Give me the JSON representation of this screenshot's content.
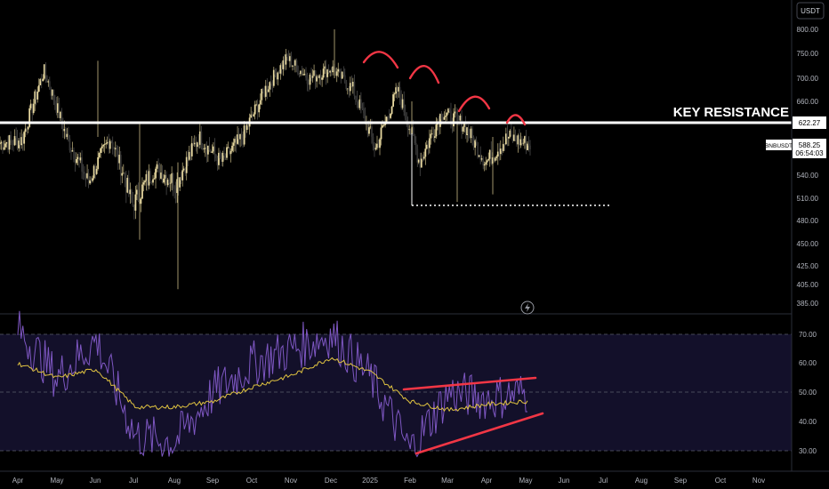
{
  "symbol": "BNBUSDT",
  "currency": "USDT",
  "colors": {
    "background": "#000000",
    "up_candle": "#e8d9a0",
    "down_candle": "#1a1a1a",
    "axis_text": "#b2b5be",
    "resistance": "#ffffff",
    "annotation": "#f23645",
    "rsi_line": "#7e57c2",
    "rsi_ma": "#e0c341",
    "rsi_band": "#14102a"
  },
  "price_pane": {
    "price_ticks": [
      "800.00",
      "750.00",
      "700.00",
      "660.00",
      "622.27",
      "540.00",
      "510.00",
      "480.00",
      "450.00",
      "425.00",
      "405.00",
      "385.00"
    ],
    "key_resistance_label": "KEY RESISTANCE",
    "key_resistance_value": "622.27",
    "current_price_label": "588.25",
    "countdown": "06:54:03"
  },
  "rsi_pane": {
    "ticks": [
      "70.00",
      "60.00",
      "50.00",
      "40.00",
      "30.00"
    ]
  },
  "time_axis": [
    "Apr",
    "May",
    "Jun",
    "Jul",
    "Aug",
    "Sep",
    "Oct",
    "Nov",
    "Dec",
    "2025",
    "Feb",
    "Mar",
    "Apr",
    "May",
    "Jun",
    "Jul",
    "Aug",
    "Sep",
    "Oct",
    "Nov"
  ],
  "chart_data": [
    {
      "type": "candlestick",
      "currency": "USDT",
      "symbol": "BNBUSDT",
      "ylim": [
        370,
        820
      ],
      "support_levels": [
        {
          "value": 500,
          "style": "dotted"
        }
      ],
      "resistance_levels": [
        {
          "label": "KEY RESISTANCE",
          "value": 622.27
        }
      ],
      "close_path": [
        {
          "x": "Apr 2024",
          "y": 590
        },
        {
          "x": "May 2024",
          "y": 595
        },
        {
          "x": "Jun 2024",
          "y": 715
        },
        {
          "x": "Jun 2024",
          "y": 600
        },
        {
          "x": "Jul 2024",
          "y": 530
        },
        {
          "x": "Jul 2024",
          "y": 600
        },
        {
          "x": "Aug 2024",
          "y": 500
        },
        {
          "x": "Aug 2024",
          "y": 550
        },
        {
          "x": "Sep 2024",
          "y": 530
        },
        {
          "x": "Oct 2024",
          "y": 600
        },
        {
          "x": "Oct 2024",
          "y": 560
        },
        {
          "x": "Nov 2024",
          "y": 600
        },
        {
          "x": "Nov 2024",
          "y": 680
        },
        {
          "x": "Dec 2024",
          "y": 740
        },
        {
          "x": "Dec 2024",
          "y": 700
        },
        {
          "x": "Jan 2025",
          "y": 720
        },
        {
          "x": "Jan 2025",
          "y": 680
        },
        {
          "x": "Feb 2025",
          "y": 580
        },
        {
          "x": "Feb 2025",
          "y": 680
        },
        {
          "x": "Mar 2025",
          "y": 560
        },
        {
          "x": "Mar 2025",
          "y": 640
        },
        {
          "x": "Apr 2025",
          "y": 620
        },
        {
          "x": "Apr 2025",
          "y": 560
        },
        {
          "x": "May 2025",
          "y": 600
        },
        {
          "x": "May 2025",
          "y": 588
        }
      ]
    },
    {
      "type": "line",
      "ylim": [
        25,
        75
      ],
      "reference_lines": [
        70,
        50,
        30
      ],
      "series": [
        {
          "values": [
            {
              "x": "Apr 2024",
              "y": 72
            },
            {
              "x": "May 2024",
              "y": 55
            },
            {
              "x": "Jun 2024",
              "y": 68
            },
            {
              "x": "Jul 2024",
              "y": 35
            },
            {
              "x": "Aug 2024",
              "y": 33
            },
            {
              "x": "Sep 2024",
              "y": 50
            },
            {
              "x": "Oct 2024",
              "y": 60
            },
            {
              "x": "Nov 2024",
              "y": 65
            },
            {
              "x": "Dec 2024",
              "y": 70
            },
            {
              "x": "Jan 2025",
              "y": 55
            },
            {
              "x": "Feb 2025",
              "y": 30
            },
            {
              "x": "Mar 2025",
              "y": 50
            },
            {
              "x": "Apr 2025",
              "y": 48
            },
            {
              "x": "May 2025",
              "y": 50
            }
          ]
        },
        {
          "values": [
            {
              "x": "Apr 2024",
              "y": 60
            },
            {
              "x": "May 2024",
              "y": 55
            },
            {
              "x": "Jun 2024",
              "y": 58
            },
            {
              "x": "Jul 2024",
              "y": 45
            },
            {
              "x": "Aug 2024",
              "y": 45
            },
            {
              "x": "Sep 2024",
              "y": 47
            },
            {
              "x": "Oct 2024",
              "y": 52
            },
            {
              "x": "Nov 2024",
              "y": 56
            },
            {
              "x": "Dec 2024",
              "y": 62
            },
            {
              "x": "Jan 2025",
              "y": 57
            },
            {
              "x": "Feb 2025",
              "y": 47
            },
            {
              "x": "Mar 2025",
              "y": 44
            },
            {
              "x": "Apr 2025",
              "y": 46
            },
            {
              "x": "May 2025",
              "y": 47
            }
          ]
        }
      ]
    }
  ]
}
